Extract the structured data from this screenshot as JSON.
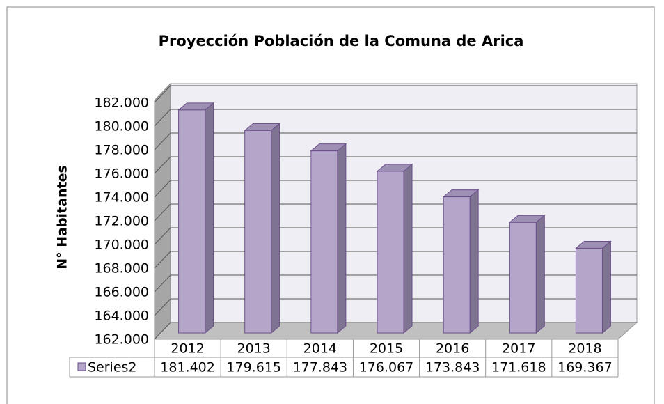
{
  "chart_data": {
    "type": "bar3d",
    "title": "Proyección Población de la Comuna de Arica",
    "y_label": "N° Habitantes",
    "categories": [
      "2012",
      "2013",
      "2014",
      "2015",
      "2016",
      "2017",
      "2018"
    ],
    "series": [
      {
        "name": "Series2",
        "color": "#b3a6c9",
        "values": [
          181402,
          179615,
          177843,
          176067,
          173843,
          171618,
          169367
        ],
        "value_labels": [
          "181.402",
          "179.615",
          "177.843",
          "176.067",
          "173.843",
          "171.618",
          "169.367"
        ]
      }
    ],
    "ylim": [
      162000,
      182000
    ],
    "yticks": [
      {
        "value": 162000,
        "label": "162.000"
      },
      {
        "value": 164000,
        "label": "164.000"
      },
      {
        "value": 166000,
        "label": "166.000"
      },
      {
        "value": 168000,
        "label": "168.000"
      },
      {
        "value": 170000,
        "label": "170.000"
      },
      {
        "value": 172000,
        "label": "172.000"
      },
      {
        "value": 174000,
        "label": "174.000"
      },
      {
        "value": 176000,
        "label": "176.000"
      },
      {
        "value": 178000,
        "label": "178.000"
      },
      {
        "value": 180000,
        "label": "180.000"
      },
      {
        "value": 182000,
        "label": "182.000"
      }
    ],
    "grid": true,
    "data_table": true
  }
}
